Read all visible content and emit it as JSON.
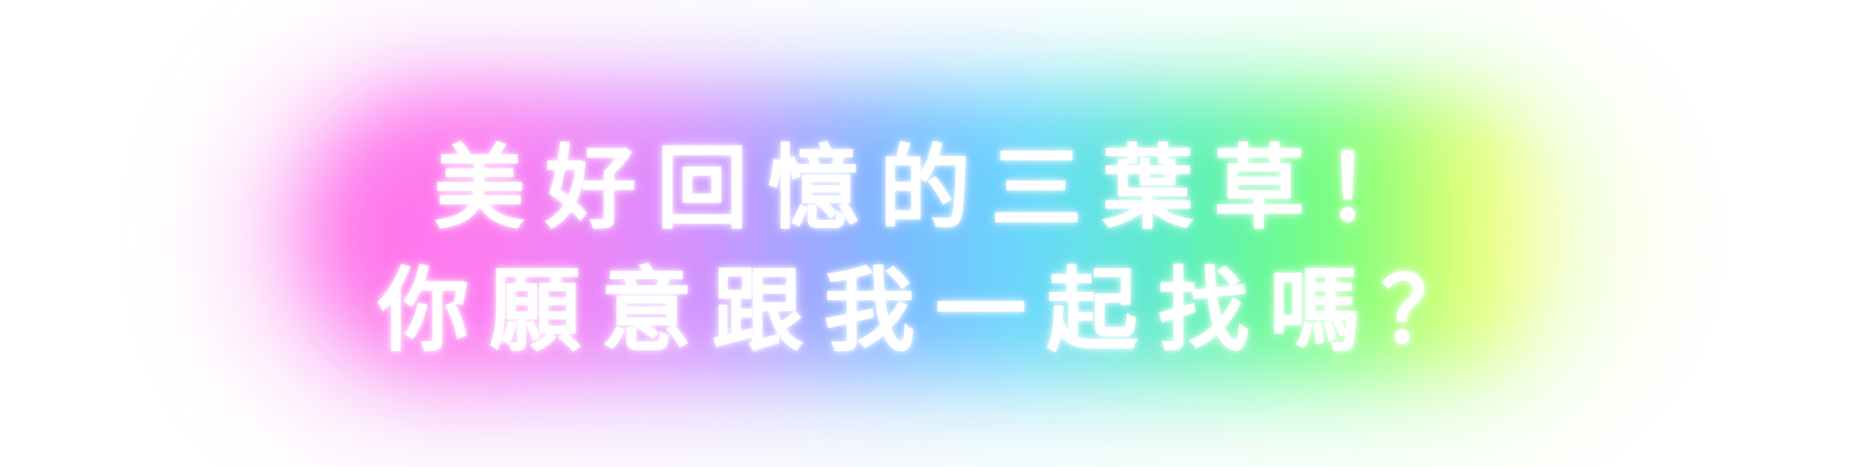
{
  "banner": {
    "line1": "美好回憶的三葉草！",
    "line2": "你願意跟我一起找嗎？"
  },
  "colors": {
    "background": "#ffffff",
    "text": "#ffffff",
    "glow_stops": [
      "#ff6ee8",
      "#d98cff",
      "#76b6ff",
      "#63d9ff",
      "#57f0ba",
      "#74ff78",
      "#f0ff70"
    ]
  }
}
